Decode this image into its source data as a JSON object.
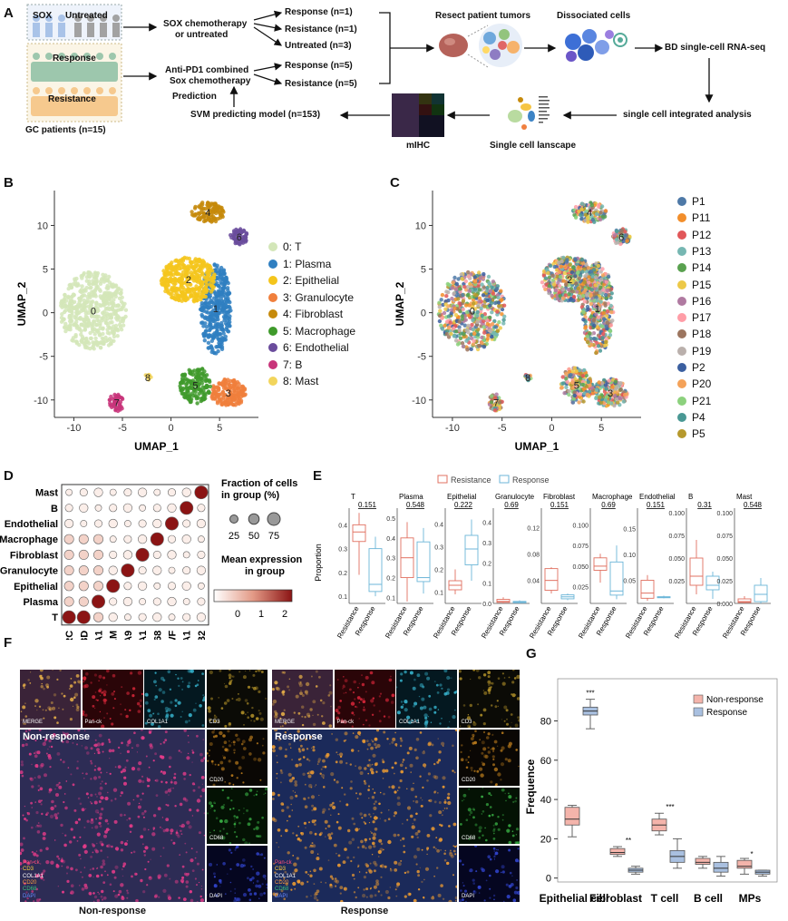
{
  "panels": {
    "A": "A",
    "B": "B",
    "C": "C",
    "D": "D",
    "E": "E",
    "F": "F",
    "G": "G"
  },
  "panelA": {
    "sox": "SOX",
    "untreated": "Untreated",
    "response": "Response",
    "resistance": "Resistance",
    "gc_patients": "GC patients (n=15)",
    "sox_chemo_1": "SOX chemotherapy",
    "sox_chemo_2": "or untreated",
    "anti_pd1_1": "Anti-PD1 combined",
    "anti_pd1_2": "Sox chemotherapy",
    "out1": "Response (n=1)",
    "out2": "Resistance (n=1)",
    "out3": "Untreated (n=3)",
    "out4": "Response (n=5)",
    "out5": "Resistance (n=5)",
    "resect": "Resect patient tumors",
    "dissociated": "Dissociated cells",
    "bd": "BD single-cell RNA-seq",
    "integrated": "single cell integrated analysis",
    "landscape": "Single cell lanscape",
    "mihc": "mIHC",
    "svm": "SVM predicting  model (n=153)",
    "prediction": "Prediction"
  },
  "umap": {
    "xlabel": "UMAP_1",
    "ylabel": "UMAP_2",
    "xticks": [
      "-10",
      "-5",
      "0",
      "5"
    ],
    "yticks": [
      "10",
      "5",
      "0",
      "-5",
      "-10"
    ],
    "clusters_B": [
      {
        "label": "0: T",
        "color": "#d3e6b8",
        "id": "0"
      },
      {
        "label": "1: Plasma",
        "color": "#2f7fc1",
        "id": "1"
      },
      {
        "label": "2: Epithelial",
        "color": "#f4c51c",
        "id": "2"
      },
      {
        "label": "3: Granulocyte",
        "color": "#f07f3c",
        "id": "3"
      },
      {
        "label": "4: Fibroblast",
        "color": "#c68a0b",
        "id": "4"
      },
      {
        "label": "5: Macrophage",
        "color": "#3f9a2b",
        "id": "5"
      },
      {
        "label": "6: Endothelial",
        "color": "#6a4c9c",
        "id": "6"
      },
      {
        "label": "7: B",
        "color": "#c8347a",
        "id": "7"
      },
      {
        "label": "8: Mast",
        "color": "#f2d55c",
        "id": "8"
      }
    ],
    "patients_C": [
      {
        "label": "P1",
        "color": "#4e79a7"
      },
      {
        "label": "P11",
        "color": "#f28e2b"
      },
      {
        "label": "P12",
        "color": "#e15759"
      },
      {
        "label": "P13",
        "color": "#76b7b2"
      },
      {
        "label": "P14",
        "color": "#59a14f"
      },
      {
        "label": "P15",
        "color": "#edc948"
      },
      {
        "label": "P16",
        "color": "#b07aa1"
      },
      {
        "label": "P17",
        "color": "#ff9da7"
      },
      {
        "label": "P18",
        "color": "#9c755f"
      },
      {
        "label": "P19",
        "color": "#bab0ac"
      },
      {
        "label": "P2",
        "color": "#3b5fa0"
      },
      {
        "label": "P20",
        "color": "#f4a259"
      },
      {
        "label": "P21",
        "color": "#8cd17d"
      },
      {
        "label": "P4",
        "color": "#499894"
      },
      {
        "label": "P5",
        "color": "#b6992d"
      }
    ]
  },
  "dotplot": {
    "rows": [
      "Mast",
      "B",
      "Endothelial",
      "Macrophage",
      "Fibroblast",
      "Granulocyte",
      "Epithelial",
      "Plasma",
      "T"
    ],
    "genes": [
      "PTPRC",
      "CD3D",
      "IGHA1",
      "EPCAM",
      "S100A9",
      "COL1A1",
      "CD68",
      "VWF",
      "MS4A1",
      "TPSB2"
    ],
    "size_title": "Fraction of cells",
    "size_title2": "in group (%)",
    "size_values": [
      "25",
      "50",
      "75"
    ],
    "color_title": "Mean expression",
    "color_title2": "in group",
    "color_ticks": [
      "0",
      "1",
      "2"
    ]
  },
  "boxE": {
    "legend": [
      "Resistance",
      "Response"
    ],
    "ylabel": "Proportion",
    "groups": [
      "Resistance",
      "Response"
    ],
    "panels": [
      {
        "title": "T",
        "p": "0.151",
        "ticks": [
          "0.4",
          "0.3",
          "0.2",
          "0.1"
        ],
        "ymin": 0.07,
        "ymax": 0.47,
        "res": [
          0.19,
          0.33,
          0.37,
          0.4,
          0.45
        ],
        "resp": [
          0.1,
          0.12,
          0.15,
          0.3,
          0.35
        ]
      },
      {
        "title": "Plasma",
        "p": "0.548",
        "ticks": [
          "0.5",
          "0.4",
          "0.3",
          "0.2",
          "0.1"
        ],
        "ymin": 0.07,
        "ymax": 0.55,
        "res": [
          0.08,
          0.2,
          0.3,
          0.4,
          0.48
        ],
        "resp": [
          0.12,
          0.18,
          0.2,
          0.38,
          0.45
        ]
      },
      {
        "title": "Epithelial",
        "p": "0.222",
        "ticks": [
          "0.4",
          "0.3",
          "0.2",
          "0.1"
        ],
        "ymin": 0.05,
        "ymax": 0.47,
        "res": [
          0.09,
          0.11,
          0.13,
          0.15,
          0.2
        ],
        "resp": [
          0.15,
          0.22,
          0.29,
          0.35,
          0.42
        ]
      },
      {
        "title": "Granulocyte",
        "p": "0.69",
        "ticks": [
          "0.4",
          "0.3",
          "0.2",
          "0.1",
          "0.0"
        ],
        "ymin": 0,
        "ymax": 0.47,
        "res": [
          0.0,
          0.005,
          0.01,
          0.02,
          0.03
        ],
        "resp": [
          0.0,
          0.003,
          0.006,
          0.01,
          0.015
        ]
      },
      {
        "title": "Fibroblast",
        "p": "0.151",
        "ticks": [
          "0.12",
          "0.08",
          "0.04"
        ],
        "ymin": 0.005,
        "ymax": 0.15,
        "res": [
          0.02,
          0.025,
          0.04,
          0.058,
          0.06
        ],
        "resp": [
          0.01,
          0.012,
          0.015,
          0.018,
          0.02
        ]
      },
      {
        "title": "Macrophage",
        "p": "0.69",
        "ticks": [
          "0.100",
          "0.075",
          "0.050",
          "0.025"
        ],
        "ymin": 0.005,
        "ymax": 0.12,
        "res": [
          0.03,
          0.045,
          0.05,
          0.06,
          0.065
        ],
        "resp": [
          0.01,
          0.015,
          0.02,
          0.055,
          0.075
        ]
      },
      {
        "title": "Endothelial",
        "p": "0.151",
        "ticks": [
          "0.15",
          "0.10",
          "0.05"
        ],
        "ymin": 0.005,
        "ymax": 0.19,
        "res": [
          0.01,
          0.015,
          0.025,
          0.05,
          0.06
        ],
        "resp": [
          0.015,
          0.016,
          0.017,
          0.018,
          0.02
        ]
      },
      {
        "title": "B",
        "p": "0.31",
        "ticks": [
          "0.100",
          "0.075",
          "0.050",
          "0.025"
        ],
        "ymin": 0.0,
        "ymax": 0.105,
        "res": [
          0.01,
          0.02,
          0.03,
          0.05,
          0.07
        ],
        "resp": [
          0.005,
          0.015,
          0.02,
          0.03,
          0.035
        ]
      },
      {
        "title": "Mast",
        "p": "0.548",
        "ticks": [
          "0.100",
          "0.075",
          "0.050",
          "0.025",
          "0.000"
        ],
        "ymin": 0,
        "ymax": 0.105,
        "res": [
          0.0,
          0.001,
          0.002,
          0.005,
          0.008
        ],
        "resp": [
          0.0,
          0.002,
          0.01,
          0.02,
          0.028
        ]
      }
    ]
  },
  "panelF": {
    "left": {
      "channels": [
        "MERGE",
        "Pan-ck",
        "COL1A1",
        "CD3"
      ],
      "side": [
        "CD20",
        "CD68",
        "DAPI"
      ],
      "title": "Non-response",
      "caption": "Non-response"
    },
    "right": {
      "channels": [
        "MERGE",
        "Pan-ck",
        "COL1A1",
        "CD3"
      ],
      "side": [
        "CD20",
        "CD68",
        "DAPI"
      ],
      "title": "Response",
      "caption": "Response"
    },
    "legend": [
      "Pan-ck",
      "CD3",
      "COL1A1",
      "CD20",
      "CD68",
      "DAPI"
    ]
  },
  "chart_data": {
    "type": "box",
    "ylabel": "Frequence",
    "yticks": [
      "80",
      "60",
      "40",
      "20",
      "0"
    ],
    "ylim": [
      -2,
      95
    ],
    "categories": [
      "Epithelial cell",
      "Fibroblast",
      "T cell",
      "B cell",
      "MPs"
    ],
    "legend": [
      "Non-response",
      "Response"
    ],
    "series": [
      {
        "name": "Non-response",
        "color": "#f4b4ab",
        "boxes": [
          [
            21,
            27,
            30,
            36,
            37
          ],
          [
            11,
            12,
            13,
            15,
            16
          ],
          [
            22,
            24,
            27,
            30,
            33
          ],
          [
            5,
            7,
            8,
            10,
            11
          ],
          [
            2,
            5,
            6,
            9,
            10
          ]
        ]
      },
      {
        "name": "Response",
        "color": "#a9c0e0",
        "boxes": [
          [
            76,
            83,
            85,
            87,
            91
          ],
          [
            2,
            3,
            4,
            5,
            6
          ],
          [
            5,
            8,
            11,
            14,
            20
          ],
          [
            1,
            3,
            5,
            8,
            11
          ],
          [
            1,
            2,
            3,
            4,
            4
          ]
        ]
      }
    ],
    "stars": [
      "***",
      "**",
      "***",
      "",
      ""
    ],
    "stars_resp": [
      "",
      "",
      "",
      "",
      "*"
    ]
  }
}
